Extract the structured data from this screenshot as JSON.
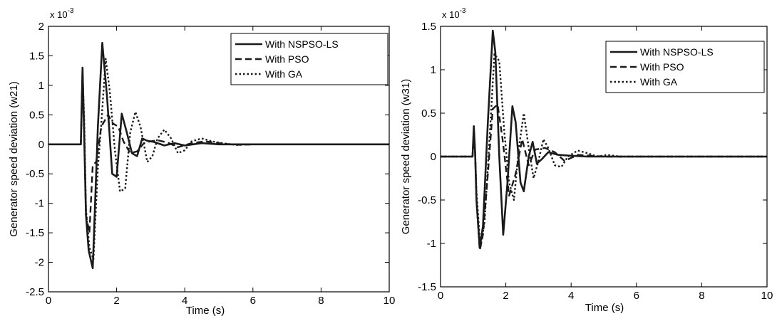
{
  "chart_data": [
    {
      "type": "line",
      "xlabel": "Time (s)",
      "ylabel": "Generator speed deviation (w21)",
      "y_multiplier": "x 10",
      "y_exponent": "-3",
      "xlim": [
        0,
        10
      ],
      "ylim": [
        -2.5,
        2
      ],
      "xticks": [
        0,
        2,
        4,
        6,
        8,
        10
      ],
      "yticks": [
        -2.5,
        -2,
        -1.5,
        -1,
        -0.5,
        0,
        0.5,
        1,
        1.5,
        2
      ],
      "xtick_labels": [
        "0",
        "2",
        "4",
        "6",
        "8",
        "10"
      ],
      "ytick_labels": [
        "-2.5",
        "-2",
        "-1.5",
        "-1",
        "-0.5",
        "0",
        "0.5",
        "1",
        "1.5",
        "2"
      ],
      "grid": false,
      "legend_position": "top-right",
      "series": [
        {
          "name": "With NSPSO-LS",
          "style": "solid",
          "x": [
            0,
            0.95,
            1.0,
            1.05,
            1.1,
            1.18,
            1.3,
            1.45,
            1.58,
            1.72,
            1.87,
            2.0,
            2.15,
            2.3,
            2.45,
            2.6,
            2.75,
            2.9,
            3.1,
            3.4,
            3.7,
            4.0,
            4.5,
            5.0,
            6.0,
            10.0
          ],
          "y": [
            0,
            0,
            1.3,
            0.1,
            -1.2,
            -1.8,
            -2.1,
            0.3,
            1.72,
            0.8,
            -0.5,
            -0.55,
            0.52,
            0.2,
            -0.15,
            -0.2,
            0.1,
            0.06,
            0.04,
            -0.02,
            0.02,
            -0.02,
            0.02,
            0,
            0,
            0
          ]
        },
        {
          "name": "With PSO",
          "style": "dashed",
          "x": [
            0,
            0.95,
            1.0,
            1.05,
            1.1,
            1.2,
            1.3,
            1.4,
            1.55,
            1.75,
            1.9,
            2.05,
            2.2,
            2.4,
            2.6,
            2.8,
            3.0,
            3.2,
            3.5,
            3.8,
            4.2,
            4.6,
            5.0,
            5.5,
            6.0,
            10.0
          ],
          "y": [
            0,
            0,
            1.25,
            0.2,
            -1.2,
            -1.5,
            -0.35,
            -0.3,
            0.3,
            0.5,
            0.35,
            0.3,
            0.05,
            -0.15,
            -0.12,
            0.02,
            0.05,
            0.07,
            0.03,
            -0.05,
            0.02,
            0.05,
            0.02,
            -0.01,
            0,
            0
          ]
        },
        {
          "name": "With GA",
          "style": "dotted",
          "x": [
            0,
            0.95,
            1.0,
            1.05,
            1.1,
            1.2,
            1.32,
            1.45,
            1.55,
            1.68,
            1.8,
            1.95,
            2.1,
            2.25,
            2.4,
            2.55,
            2.7,
            2.9,
            3.05,
            3.2,
            3.4,
            3.6,
            3.8,
            4.0,
            4.2,
            4.5,
            4.8,
            5.1,
            5.5,
            6.0,
            10.0
          ],
          "y": [
            0,
            0,
            1.2,
            0.4,
            -1.1,
            -1.75,
            -1.95,
            -0.4,
            0.35,
            1.45,
            0.9,
            -0.1,
            -0.8,
            -0.75,
            0.2,
            0.55,
            0.3,
            -0.3,
            -0.2,
            0.1,
            0.25,
            0.1,
            -0.15,
            -0.1,
            0.05,
            0.1,
            0.05,
            0.02,
            -0.01,
            0,
            0
          ]
        }
      ]
    },
    {
      "type": "line",
      "xlabel": "Time (s)",
      "ylabel": "Generator speed deviation (w31)",
      "y_multiplier": "x 10",
      "y_exponent": "-3",
      "xlim": [
        0,
        10
      ],
      "ylim": [
        -1.5,
        1.5
      ],
      "xticks": [
        0,
        2,
        4,
        6,
        8,
        10
      ],
      "yticks": [
        -1.5,
        -1,
        -0.5,
        0,
        0.5,
        1,
        1.5
      ],
      "xtick_labels": [
        "0",
        "2",
        "4",
        "6",
        "8",
        "10"
      ],
      "ytick_labels": [
        "-1.5",
        "-1",
        "-0.5",
        "0",
        "0.5",
        "1",
        "1.5"
      ],
      "grid": false,
      "legend_position": "top-right",
      "series": [
        {
          "name": "With NSPSO-LS",
          "style": "solid",
          "x": [
            0,
            0.98,
            1.02,
            1.06,
            1.1,
            1.2,
            1.3,
            1.45,
            1.6,
            1.68,
            1.8,
            1.92,
            2.05,
            2.2,
            2.3,
            2.45,
            2.55,
            2.7,
            2.82,
            2.95,
            3.1,
            3.3,
            3.6,
            4.0,
            4.5,
            5.0,
            10.0
          ],
          "y": [
            0,
            0,
            0.35,
            0.05,
            -0.5,
            -1.05,
            -0.8,
            0.4,
            1.45,
            1.2,
            0.0,
            -0.9,
            -0.3,
            0.58,
            0.4,
            -0.3,
            -0.4,
            0.0,
            0.17,
            -0.08,
            -0.03,
            0.05,
            0.02,
            0.01,
            0.0,
            0.0,
            0.0
          ]
        },
        {
          "name": "With PSO",
          "style": "dashed",
          "x": [
            0,
            0.98,
            1.02,
            1.06,
            1.1,
            1.2,
            1.3,
            1.45,
            1.6,
            1.75,
            1.9,
            2.1,
            2.3,
            2.5,
            2.7,
            2.9,
            3.2,
            3.5,
            3.8,
            4.2,
            4.6,
            5.0,
            5.5,
            10.0
          ],
          "y": [
            0,
            0,
            0.3,
            0.05,
            -0.5,
            -1.08,
            -0.9,
            -0.2,
            0.55,
            0.6,
            0.2,
            -0.45,
            -0.2,
            0.2,
            -0.1,
            0.08,
            0.1,
            0.05,
            -0.05,
            0.02,
            0.01,
            0.0,
            0.0,
            0.0
          ]
        },
        {
          "name": "With GA",
          "style": "dotted",
          "x": [
            0,
            0.98,
            1.02,
            1.06,
            1.1,
            1.22,
            1.35,
            1.5,
            1.65,
            1.8,
            1.95,
            2.1,
            2.25,
            2.4,
            2.55,
            2.7,
            2.85,
            3.0,
            3.15,
            3.3,
            3.5,
            3.7,
            3.9,
            4.2,
            4.5,
            4.8,
            5.1,
            5.5,
            10.0
          ],
          "y": [
            0,
            0,
            0.3,
            0.05,
            -0.4,
            -1.05,
            -0.75,
            0.2,
            1.18,
            1.1,
            0.3,
            -0.3,
            -0.5,
            0.1,
            0.5,
            0.1,
            -0.25,
            -0.05,
            0.2,
            0.1,
            -0.1,
            -0.12,
            0.0,
            0.07,
            0.04,
            0.0,
            0.02,
            0.0,
            0.0
          ]
        }
      ]
    }
  ]
}
